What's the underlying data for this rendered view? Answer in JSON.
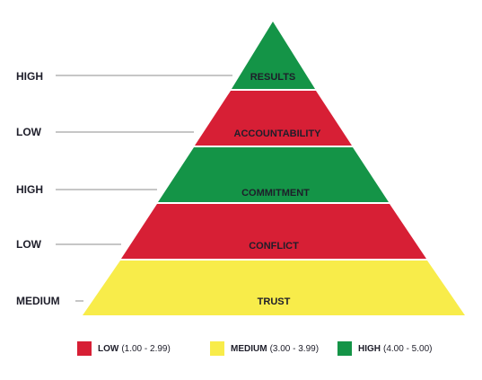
{
  "layers": [
    {
      "name": "RESULTS",
      "level": "HIGH",
      "color": "#149447"
    },
    {
      "name": "ACCOUNTABILITY",
      "level": "LOW",
      "color": "#d71f35"
    },
    {
      "name": "COMMITMENT",
      "level": "HIGH",
      "color": "#149447"
    },
    {
      "name": "CONFLICT",
      "level": "LOW",
      "color": "#d71f35"
    },
    {
      "name": "TRUST",
      "level": "MEDIUM",
      "color": "#f8ec4a"
    }
  ],
  "legend": [
    {
      "name": "LOW",
      "range": "(1.00 - 2.99)",
      "color": "#d71f35"
    },
    {
      "name": "MEDIUM",
      "range": "(3.00 - 3.99)",
      "color": "#f8ec4a"
    },
    {
      "name": "HIGH",
      "range": "(4.00 - 5.00)",
      "color": "#149447"
    }
  ]
}
